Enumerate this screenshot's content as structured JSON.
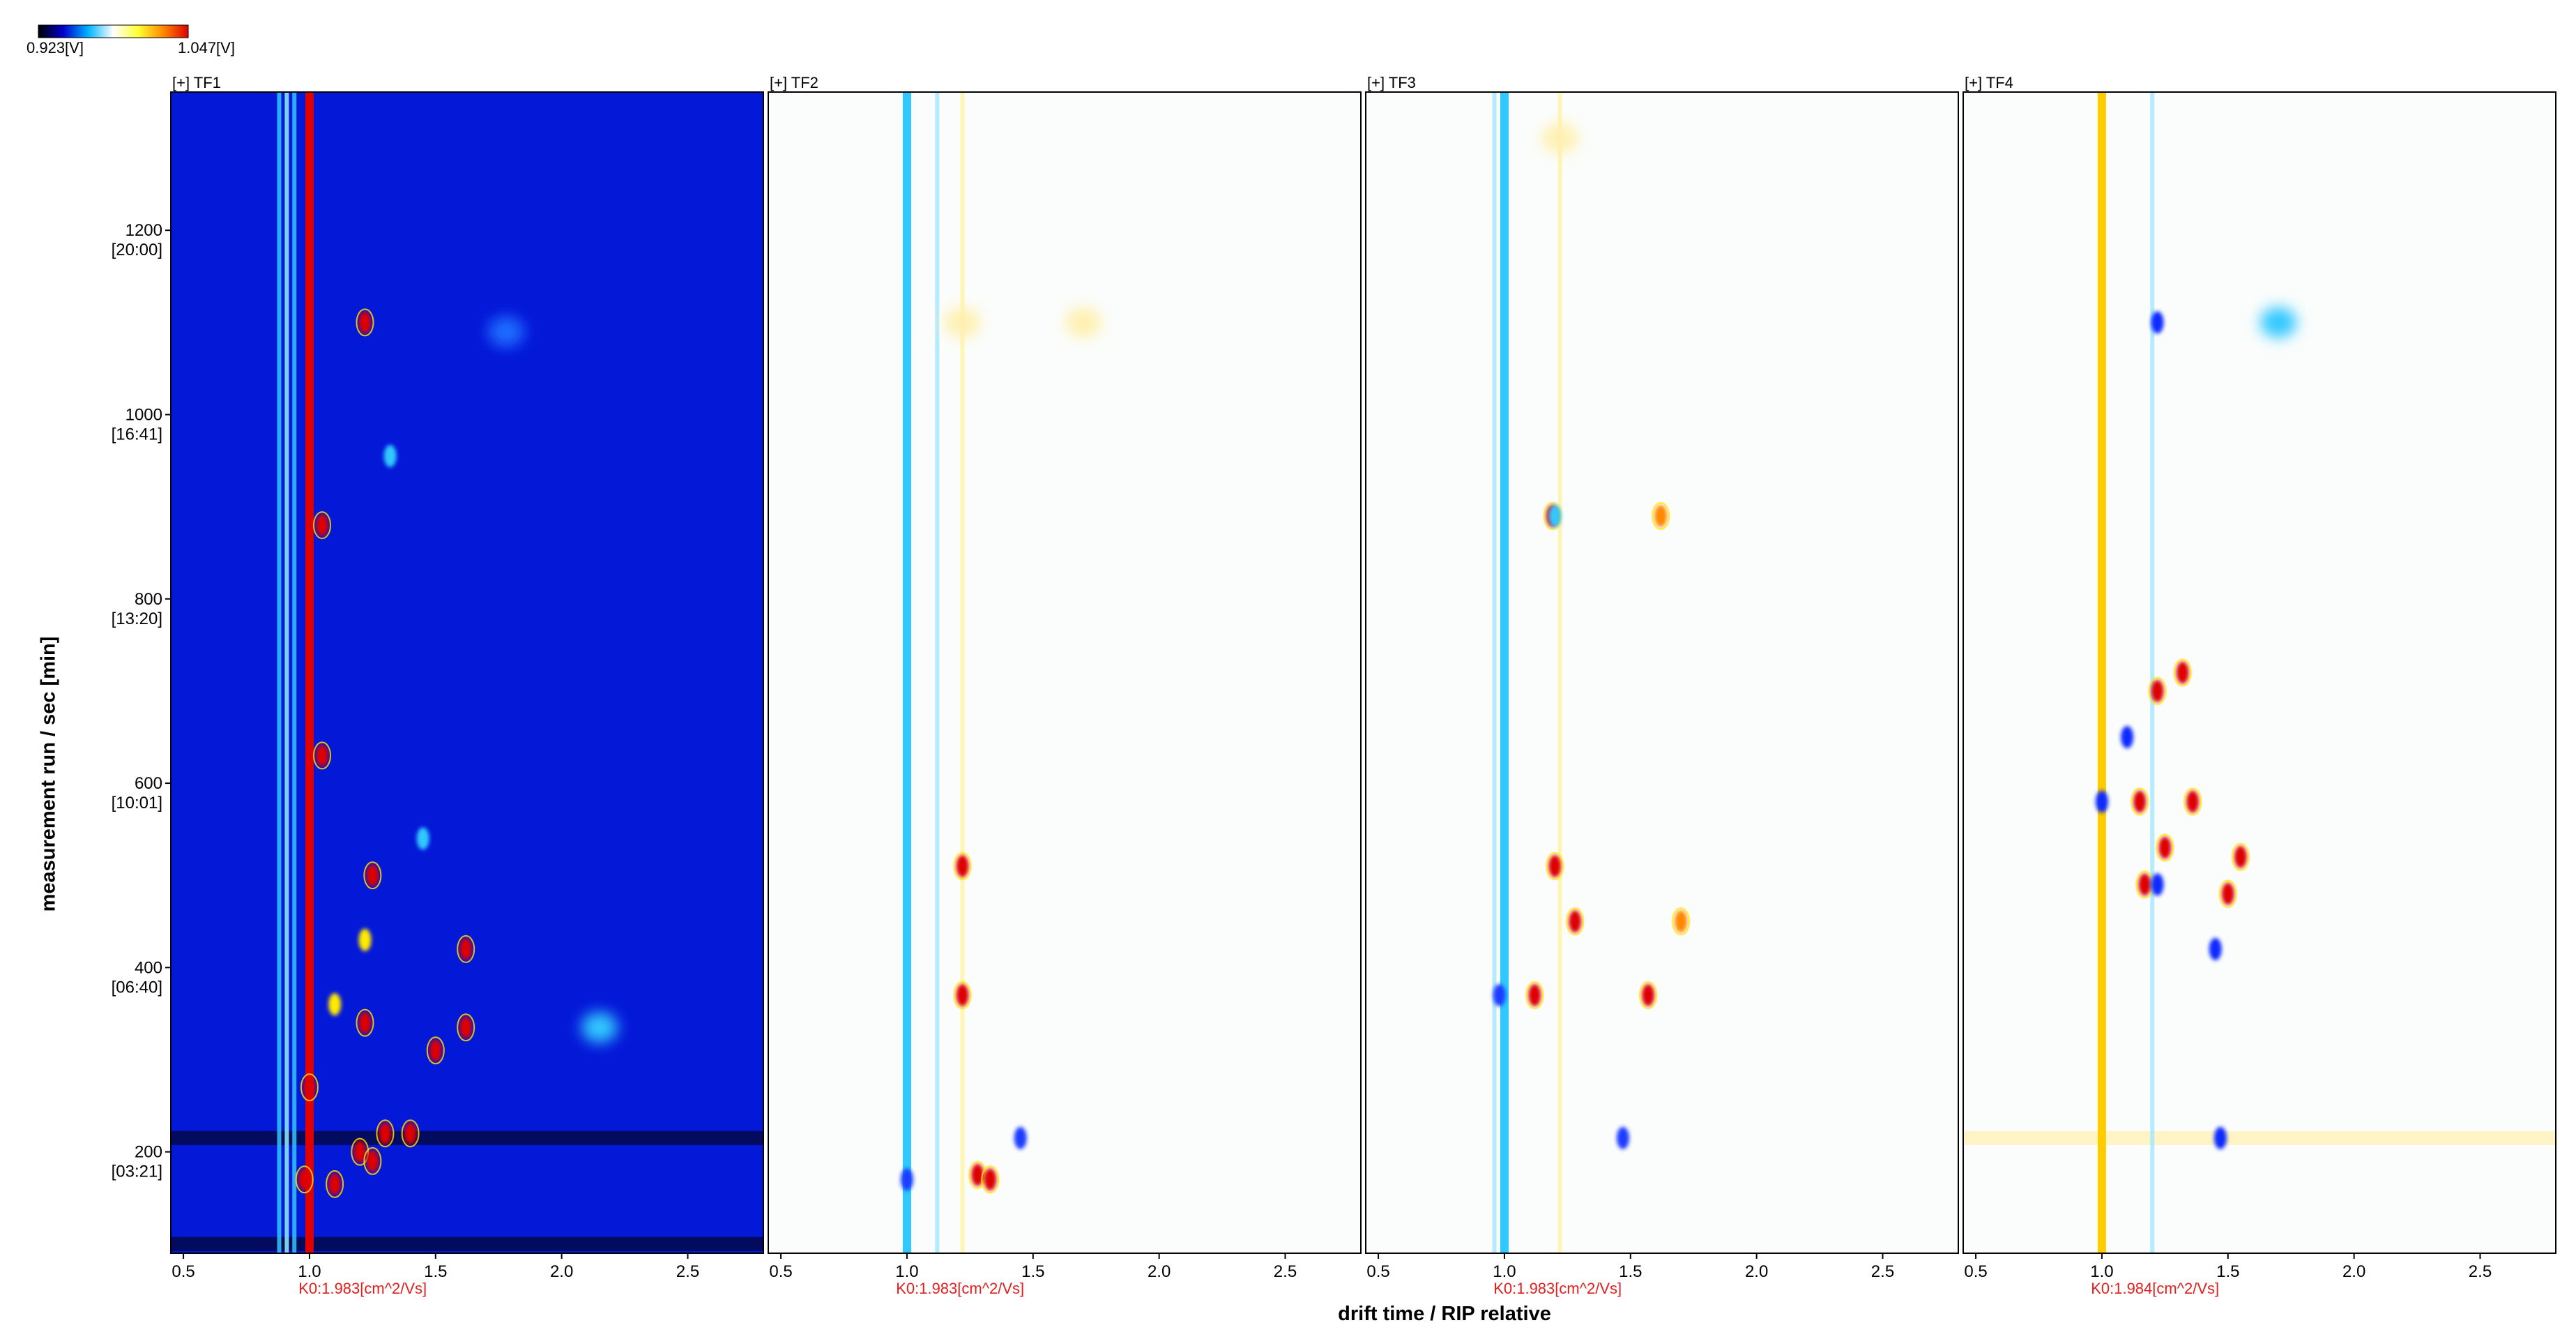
{
  "colorbar": {
    "min_label": "0.923[V]",
    "max_label": "1.047[V]",
    "stops": [
      "#000000",
      "#0000cc",
      "#00b4ff",
      "#ffffff",
      "#ffff33",
      "#ff8800",
      "#dd0000"
    ]
  },
  "y_axis_label": "measurement run / sec [min]",
  "x_axis_label": "drift time / RIP relative",
  "chart_data": [
    {
      "type": "heatmap",
      "title": "[+] TF1",
      "k0_label": "K0:1.983[cm^2/Vs]",
      "background": "#0418d8",
      "rip_color": "#e00000",
      "xlim": [
        0.45,
        2.8
      ],
      "ylim": [
        90,
        1350
      ],
      "x_ticks": [
        0.5,
        1.0,
        1.5,
        2.0,
        2.5
      ],
      "x_tick_labels": [
        "0.5",
        "1.0",
        "1.5",
        "2.0",
        "2.5"
      ],
      "y_ticks": [
        200,
        400,
        600,
        800,
        1000,
        1200
      ],
      "y_tick_labels": [
        "200",
        "400",
        "600",
        "800",
        "1000",
        "1200"
      ],
      "y_tick_sublabels": [
        "[03:21]",
        "[06:40]",
        "[10:01]",
        "[13:20]",
        "[16:41]",
        "[20:00]"
      ],
      "hbands": [
        {
          "y": 215,
          "color": "#020a50"
        },
        {
          "y": 100,
          "color": "#020a50"
        }
      ],
      "vlines": [
        {
          "x": 0.88,
          "color": "#30c8ff"
        },
        {
          "x": 0.91,
          "color": "#8ff0ff"
        },
        {
          "x": 0.94,
          "color": "#30c8ff"
        }
      ],
      "spots": [
        {
          "x": 1.22,
          "y": 1100,
          "color": "#dd0000"
        },
        {
          "x": 1.05,
          "y": 880,
          "color": "#dd0000"
        },
        {
          "x": 1.05,
          "y": 630,
          "color": "#dd0000"
        },
        {
          "x": 1.25,
          "y": 500,
          "color": "#dd0000"
        },
        {
          "x": 1.62,
          "y": 420,
          "color": "#dd0000"
        },
        {
          "x": 1.62,
          "y": 335,
          "color": "#dd0000"
        },
        {
          "x": 1.5,
          "y": 310,
          "color": "#dd0000"
        },
        {
          "x": 1.0,
          "y": 270,
          "color": "#dd0000"
        },
        {
          "x": 1.3,
          "y": 220,
          "color": "#dd0000"
        },
        {
          "x": 1.4,
          "y": 220,
          "color": "#dd0000"
        },
        {
          "x": 1.2,
          "y": 200,
          "color": "#dd0000"
        },
        {
          "x": 1.1,
          "y": 165,
          "color": "#dd0000"
        },
        {
          "x": 1.25,
          "y": 190,
          "color": "#dd0000"
        },
        {
          "x": 1.22,
          "y": 340,
          "color": "#dd0000"
        },
        {
          "x": 0.98,
          "y": 170,
          "color": "#dd0000"
        },
        {
          "x": 1.22,
          "y": 430,
          "color": "#ffea00"
        },
        {
          "x": 1.1,
          "y": 360,
          "color": "#ffea00"
        },
        {
          "x": 2.15,
          "y": 335,
          "color": "#30c8ff"
        },
        {
          "x": 1.32,
          "y": 955,
          "color": "#30c8ff"
        },
        {
          "x": 1.78,
          "y": 1090,
          "color": "#1a6cff"
        },
        {
          "x": 1.45,
          "y": 540,
          "color": "#30c8ff"
        }
      ]
    },
    {
      "type": "heatmap",
      "title": "[+] TF2",
      "k0_label": "K0:1.983[cm^2/Vs]",
      "background": "#fbfdfc",
      "rip_color": "#30c8ff",
      "xlim": [
        0.45,
        2.8
      ],
      "ylim": [
        90,
        1350
      ],
      "x_ticks": [
        0.5,
        1.0,
        1.5,
        2.0,
        2.5
      ],
      "x_tick_labels": [
        "0.5",
        "1.0",
        "1.5",
        "2.0",
        "2.5"
      ],
      "hbands": [],
      "vlines": [
        {
          "x": 1.12,
          "color": "#a8e6ff"
        },
        {
          "x": 1.22,
          "color": "#fff3a8"
        }
      ],
      "spots": [
        {
          "x": 1.22,
          "y": 510,
          "color": "#dd0000"
        },
        {
          "x": 1.28,
          "y": 175,
          "color": "#dd0000"
        },
        {
          "x": 1.33,
          "y": 170,
          "color": "#dd0000"
        },
        {
          "x": 1.22,
          "y": 370,
          "color": "#dd0000"
        },
        {
          "x": 1.45,
          "y": 215,
          "color": "#1a3cff"
        },
        {
          "x": 1.0,
          "y": 170,
          "color": "#1a3cff"
        },
        {
          "x": 1.7,
          "y": 1100,
          "color": "#fff0b0"
        },
        {
          "x": 1.22,
          "y": 1100,
          "color": "#fff0b0"
        }
      ]
    },
    {
      "type": "heatmap",
      "title": "[+] TF3",
      "k0_label": "K0:1.983[cm^2/Vs]",
      "background": "#fbfdfc",
      "rip_color": "#30c8ff",
      "xlim": [
        0.45,
        2.8
      ],
      "ylim": [
        90,
        1350
      ],
      "x_ticks": [
        0.5,
        1.0,
        1.5,
        2.0,
        2.5
      ],
      "x_tick_labels": [
        "0.5",
        "1.0",
        "1.5",
        "2.0",
        "2.5"
      ],
      "hbands": [],
      "vlines": [
        {
          "x": 0.96,
          "color": "#a8e6ff"
        },
        {
          "x": 1.22,
          "color": "#fff3a8"
        }
      ],
      "spots": [
        {
          "x": 1.19,
          "y": 890,
          "color": "#dd0000"
        },
        {
          "x": 1.62,
          "y": 890,
          "color": "#ff8800"
        },
        {
          "x": 1.28,
          "y": 450,
          "color": "#dd0000"
        },
        {
          "x": 1.7,
          "y": 450,
          "color": "#ff8800"
        },
        {
          "x": 1.2,
          "y": 510,
          "color": "#dd0000"
        },
        {
          "x": 1.12,
          "y": 370,
          "color": "#dd0000"
        },
        {
          "x": 1.57,
          "y": 370,
          "color": "#dd0000"
        },
        {
          "x": 0.98,
          "y": 370,
          "color": "#1a3cff"
        },
        {
          "x": 1.47,
          "y": 215,
          "color": "#1a3cff"
        },
        {
          "x": 1.2,
          "y": 890,
          "color": "#30c8ff"
        },
        {
          "x": 1.22,
          "y": 1300,
          "color": "#fff0b0"
        }
      ]
    },
    {
      "type": "heatmap",
      "title": "[+] TF4",
      "k0_label": "K0:1.984[cm^2/Vs]",
      "background": "#fbfdfc",
      "rip_color": "#ffcc00",
      "xlim": [
        0.45,
        2.8
      ],
      "ylim": [
        90,
        1350
      ],
      "x_ticks": [
        0.5,
        1.0,
        1.5,
        2.0,
        2.5
      ],
      "x_tick_labels": [
        "0.5",
        "1.0",
        "1.5",
        "2.0",
        "2.5"
      ],
      "hbands": [
        {
          "y": 215,
          "color": "#fff3c0"
        }
      ],
      "vlines": [
        {
          "x": 1.0,
          "color": "#30c8ff"
        },
        {
          "x": 1.2,
          "color": "#a8e6ff"
        }
      ],
      "spots": [
        {
          "x": 1.22,
          "y": 1100,
          "color": "#0a2cff"
        },
        {
          "x": 1.7,
          "y": 1100,
          "color": "#30c8ff"
        },
        {
          "x": 1.22,
          "y": 700,
          "color": "#dd0000"
        },
        {
          "x": 1.32,
          "y": 720,
          "color": "#dd0000"
        },
        {
          "x": 1.15,
          "y": 580,
          "color": "#dd0000"
        },
        {
          "x": 1.36,
          "y": 580,
          "color": "#dd0000"
        },
        {
          "x": 1.25,
          "y": 530,
          "color": "#dd0000"
        },
        {
          "x": 1.55,
          "y": 520,
          "color": "#dd0000"
        },
        {
          "x": 1.17,
          "y": 490,
          "color": "#dd0000"
        },
        {
          "x": 1.22,
          "y": 490,
          "color": "#0a2cff"
        },
        {
          "x": 1.1,
          "y": 650,
          "color": "#0a2cff"
        },
        {
          "x": 1.45,
          "y": 420,
          "color": "#0a2cff"
        },
        {
          "x": 1.47,
          "y": 215,
          "color": "#0a2cff"
        },
        {
          "x": 1.0,
          "y": 580,
          "color": "#0a2cff"
        },
        {
          "x": 1.5,
          "y": 480,
          "color": "#dd0000"
        }
      ]
    }
  ]
}
